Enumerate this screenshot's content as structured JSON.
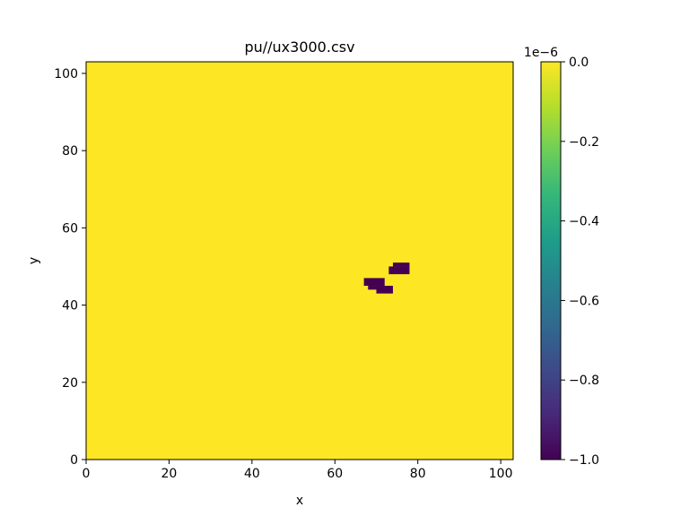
{
  "chart_data": {
    "type": "heatmap",
    "title": "pu//ux3000.csv",
    "xlabel": "x",
    "ylabel": "y",
    "xlim": [
      0,
      103
    ],
    "ylim": [
      0,
      103
    ],
    "x_ticks": [
      0,
      20,
      40,
      60,
      80,
      100
    ],
    "y_ticks": [
      0,
      20,
      40,
      60,
      80,
      100
    ],
    "background_value": 0.0,
    "background_color": "#fde725",
    "cell_color": "#440154",
    "cells": [
      {
        "x": 67,
        "y": 45,
        "w": 5,
        "h": 2,
        "value": -1e-06
      },
      {
        "x": 68,
        "y": 44,
        "w": 2,
        "h": 1,
        "value": -1e-06
      },
      {
        "x": 70,
        "y": 43,
        "w": 4,
        "h": 2,
        "value": -1e-06
      },
      {
        "x": 73,
        "y": 48,
        "w": 5,
        "h": 2,
        "value": -1e-06
      },
      {
        "x": 74,
        "y": 50,
        "w": 4,
        "h": 1,
        "value": -1e-06
      },
      {
        "x": 77,
        "y": 49,
        "w": 1,
        "h": 1,
        "value": -1e-06
      }
    ],
    "colorbar": {
      "colormap": "viridis",
      "min": -1.0,
      "max": 0.0,
      "ticks": [
        "0.0",
        "−0.2",
        "−0.4",
        "−0.6",
        "−0.8",
        "−1.0"
      ],
      "tick_values": [
        0.0,
        -0.2,
        -0.4,
        -0.6,
        -0.8,
        -1.0
      ],
      "offset_label": "1e−6",
      "stops": [
        "#440154",
        "#482878",
        "#3e4989",
        "#31688e",
        "#26828e",
        "#1f9e89",
        "#35b779",
        "#6ece58",
        "#b5de2b",
        "#fde725"
      ]
    }
  }
}
